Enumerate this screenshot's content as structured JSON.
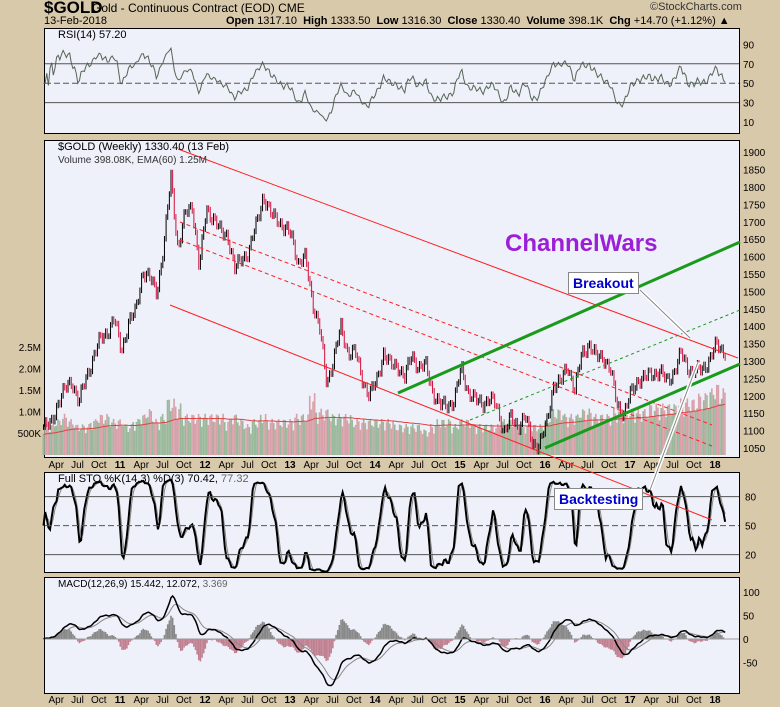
{
  "header": {
    "symbol": "$GOLD",
    "name": "Gold - Continuous Contract (EOD)",
    "exchange": "CME",
    "date": "13-Feb-2018",
    "watermark": "©StockCharts.com",
    "open_label": "Open",
    "open": "1317.10",
    "high_label": "High",
    "high": "1333.50",
    "low_label": "Low",
    "low": "1316.30",
    "close_label": "Close",
    "close": "1330.40",
    "volume_label": "Volume",
    "volume": "398.1K",
    "chg_label": "Chg",
    "chg": "+14.70 (+1.12%)"
  },
  "rsi": {
    "label": "RSI(14) 57.20"
  },
  "price": {
    "label": "$GOLD (Weekly) 1330.40 (13 Feb)",
    "volume_label": "Volume 398.08K, EMA(60) 1.25M"
  },
  "sto": {
    "label": "Full STO %K(14,3) %D(3) 70.42,",
    "d_value": "77.32"
  },
  "macd": {
    "label": "MACD(12,26,9) 15.442,",
    "signal": "12.072,",
    "hist": "3.369"
  },
  "annotations": {
    "title": "ChannelWars",
    "breakout": "Breakout",
    "backtesting": "Backtesting"
  },
  "colors": {
    "up": "#000000",
    "down": "#d0103a",
    "channel": "#ff2020",
    "green": "#1a9a1a",
    "purple": "#9b1fd6",
    "label": "#0000cc"
  },
  "chart_data": [
    {
      "type": "line",
      "title": "$GOLD (Weekly)",
      "ylim": [
        1050,
        1900
      ],
      "yticks": [
        1050,
        1100,
        1150,
        1200,
        1250,
        1300,
        1350,
        1400,
        1450,
        1500,
        1550,
        1600,
        1650,
        1700,
        1750,
        1800,
        1850,
        1900
      ],
      "volume_ticks": [
        "500K",
        "1.0M",
        "1.5M",
        "2.0M",
        "2.5M"
      ],
      "xticks": [
        "Apr",
        "Jul",
        "Oct",
        "11",
        "Apr",
        "Jul",
        "Oct",
        "12",
        "Apr",
        "Jul",
        "Oct",
        "13",
        "Apr",
        "Jul",
        "Oct",
        "14",
        "Apr",
        "Jul",
        "Oct",
        "15",
        "Apr",
        "Jul",
        "Oct",
        "16",
        "Apr",
        "Jul",
        "Oct",
        "17",
        "Apr",
        "Jul",
        "Oct",
        "18"
      ],
      "start": "2010-02",
      "monthly_close": [
        1110,
        1115,
        1180,
        1215,
        1245,
        1180,
        1250,
        1310,
        1360,
        1385,
        1420,
        1330,
        1410,
        1440,
        1560,
        1535,
        1500,
        1630,
        1830,
        1620,
        1720,
        1750,
        1565,
        1740,
        1710,
        1670,
        1665,
        1560,
        1600,
        1610,
        1690,
        1775,
        1720,
        1715,
        1675,
        1665,
        1580,
        1595,
        1470,
        1390,
        1235,
        1310,
        1395,
        1325,
        1325,
        1250,
        1200,
        1240,
        1325,
        1285,
        1290,
        1250,
        1320,
        1280,
        1285,
        1210,
        1170,
        1175,
        1185,
        1280,
        1210,
        1185,
        1180,
        1190,
        1170,
        1095,
        1135,
        1115,
        1140,
        1065,
        1060,
        1115,
        1235,
        1235,
        1290,
        1215,
        1320,
        1350,
        1310,
        1315,
        1275,
        1175,
        1150,
        1210,
        1250,
        1250,
        1265,
        1270,
        1240,
        1270,
        1320,
        1280,
        1270,
        1275,
        1305,
        1345,
        1330
      ],
      "monthly_volume_M": [
        0.6,
        0.6,
        0.7,
        0.8,
        0.7,
        0.6,
        0.6,
        0.7,
        0.8,
        0.8,
        0.7,
        0.7,
        0.6,
        0.7,
        0.8,
        0.9,
        0.7,
        0.8,
        1.1,
        1.0,
        0.8,
        0.8,
        0.8,
        0.8,
        0.8,
        0.8,
        0.7,
        0.8,
        0.7,
        0.6,
        0.7,
        0.8,
        0.7,
        0.7,
        0.7,
        0.7,
        0.8,
        0.8,
        1.2,
        0.9,
        0.9,
        0.8,
        0.8,
        0.8,
        0.7,
        0.7,
        0.7,
        0.7,
        0.7,
        0.7,
        0.6,
        0.6,
        0.6,
        0.6,
        0.5,
        0.6,
        0.7,
        0.7,
        0.6,
        0.7,
        0.7,
        0.6,
        0.6,
        0.6,
        0.6,
        0.7,
        0.7,
        0.6,
        0.6,
        0.6,
        0.6,
        0.7,
        0.9,
        0.9,
        0.8,
        0.8,
        0.9,
        0.9,
        0.8,
        0.8,
        0.8,
        0.9,
        0.8,
        0.9,
        0.9,
        0.9,
        1.0,
        1.0,
        1.0,
        1.0,
        1.1,
        1.1,
        1.1,
        1.2,
        1.3,
        1.4,
        1.3
      ]
    },
    {
      "type": "line",
      "title": "RSI(14)",
      "ylim": [
        0,
        100
      ],
      "yticks": [
        10,
        30,
        50,
        70,
        90
      ]
    },
    {
      "type": "line",
      "title": "Full STO %K(14,3) %D(3)",
      "yticks": [
        20,
        50,
        80
      ]
    },
    {
      "type": "line",
      "title": "MACD(12,26,9)",
      "yticks": [
        -50,
        0,
        50,
        100
      ]
    }
  ]
}
